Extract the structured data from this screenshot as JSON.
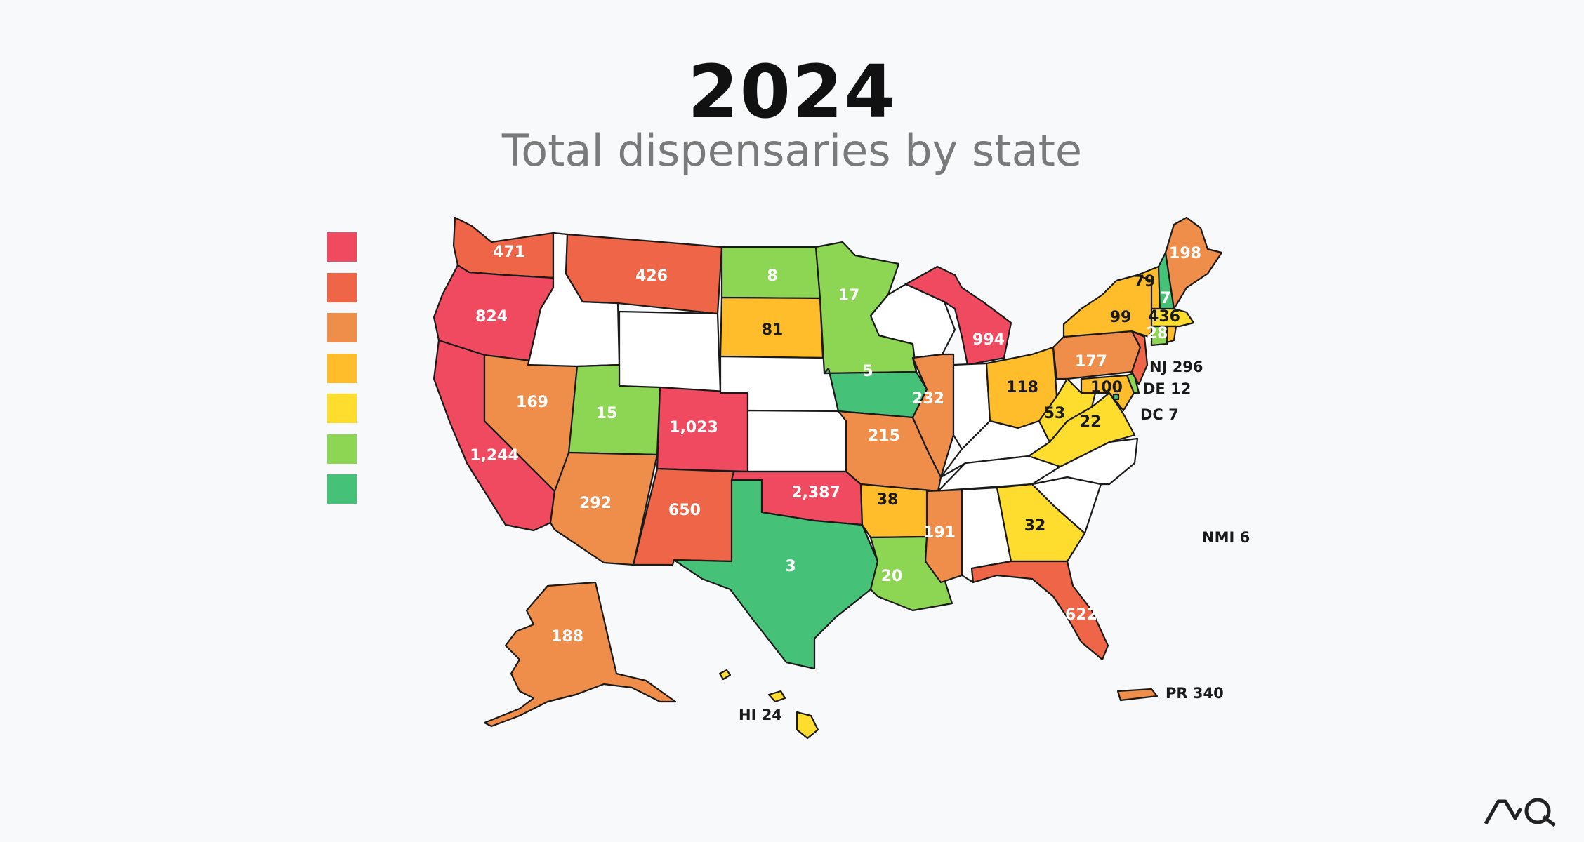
{
  "header": {
    "year": "2024",
    "subtitle": "Total dispensaries by state"
  },
  "colors": {
    "c1": "#ef4a5f",
    "c2": "#ee6548",
    "c3": "#ef8e4b",
    "c4": "#ffbd2b",
    "c5": "#ffdd2e",
    "c6": "#8dd654",
    "c7": "#46c278",
    "none": "#ffffff"
  },
  "legend": [
    "c1",
    "c2",
    "c3",
    "c4",
    "c5",
    "c6",
    "c7"
  ],
  "states": {
    "WA": {
      "value": "471",
      "color": "c2"
    },
    "OR": {
      "value": "824",
      "color": "c1"
    },
    "CA": {
      "value": "1,244",
      "color": "c1"
    },
    "NV": {
      "value": "169",
      "color": "c3"
    },
    "ID": {
      "value": "",
      "color": "none"
    },
    "MT": {
      "value": "426",
      "color": "c2"
    },
    "WY": {
      "value": "",
      "color": "none"
    },
    "UT": {
      "value": "15",
      "color": "c6"
    },
    "AZ": {
      "value": "292",
      "color": "c3"
    },
    "CO": {
      "value": "1,023",
      "color": "c1"
    },
    "NM": {
      "value": "650",
      "color": "c2"
    },
    "ND": {
      "value": "8",
      "color": "c6"
    },
    "SD": {
      "value": "81",
      "color": "c4"
    },
    "NE": {
      "value": "",
      "color": "none"
    },
    "KS": {
      "value": "",
      "color": "none"
    },
    "OK": {
      "value": "2,387",
      "color": "c1"
    },
    "TX": {
      "value": "3",
      "color": "c7"
    },
    "MN": {
      "value": "17",
      "color": "c6"
    },
    "IA": {
      "value": "5",
      "color": "c7"
    },
    "MO": {
      "value": "215",
      "color": "c3"
    },
    "AR": {
      "value": "38",
      "color": "c4"
    },
    "LA": {
      "value": "20",
      "color": "c6"
    },
    "WI": {
      "value": "",
      "color": "none"
    },
    "IL": {
      "value": "232",
      "color": "c3"
    },
    "MI": {
      "value": "994",
      "color": "c1"
    },
    "IN": {
      "value": "",
      "color": "none"
    },
    "OH": {
      "value": "118",
      "color": "c4"
    },
    "KY": {
      "value": "",
      "color": "none"
    },
    "TN": {
      "value": "",
      "color": "none"
    },
    "MS": {
      "value": "191",
      "color": "c3"
    },
    "AL": {
      "value": "",
      "color": "none"
    },
    "GA": {
      "value": "32",
      "color": "c5"
    },
    "FL": {
      "value": "622",
      "color": "c2"
    },
    "SC": {
      "value": "",
      "color": "none"
    },
    "NC": {
      "value": "",
      "color": "none"
    },
    "VA": {
      "value": "22",
      "color": "c5"
    },
    "WV": {
      "value": "53",
      "color": "c5"
    },
    "PA": {
      "value": "177",
      "color": "c3"
    },
    "NY": {
      "value": "99",
      "color": "c4"
    },
    "VT": {
      "value": "79",
      "color": "c4"
    },
    "NH": {
      "value": "7",
      "color": "c7"
    },
    "ME": {
      "value": "198",
      "color": "c3"
    },
    "MA": {
      "value": "436",
      "color": "c5"
    },
    "CT": {
      "value": "28",
      "color": "c6"
    },
    "RI": {
      "value": "",
      "color": "c4"
    },
    "MD": {
      "value": "100",
      "color": "c4"
    },
    "NJ": {
      "value": "NJ 296",
      "color": "c2"
    },
    "DE": {
      "value": "DE 12",
      "color": "c6"
    },
    "DC": {
      "value": "DC 7",
      "color": "c7"
    },
    "AK": {
      "value": "188",
      "color": "c3"
    },
    "HI": {
      "value": "HI 24",
      "color": "c5"
    },
    "PR": {
      "value": "PR 340",
      "color": "c3"
    },
    "NMI": {
      "value": "NMI 6",
      "color": "c7"
    }
  },
  "logo": "AQ"
}
